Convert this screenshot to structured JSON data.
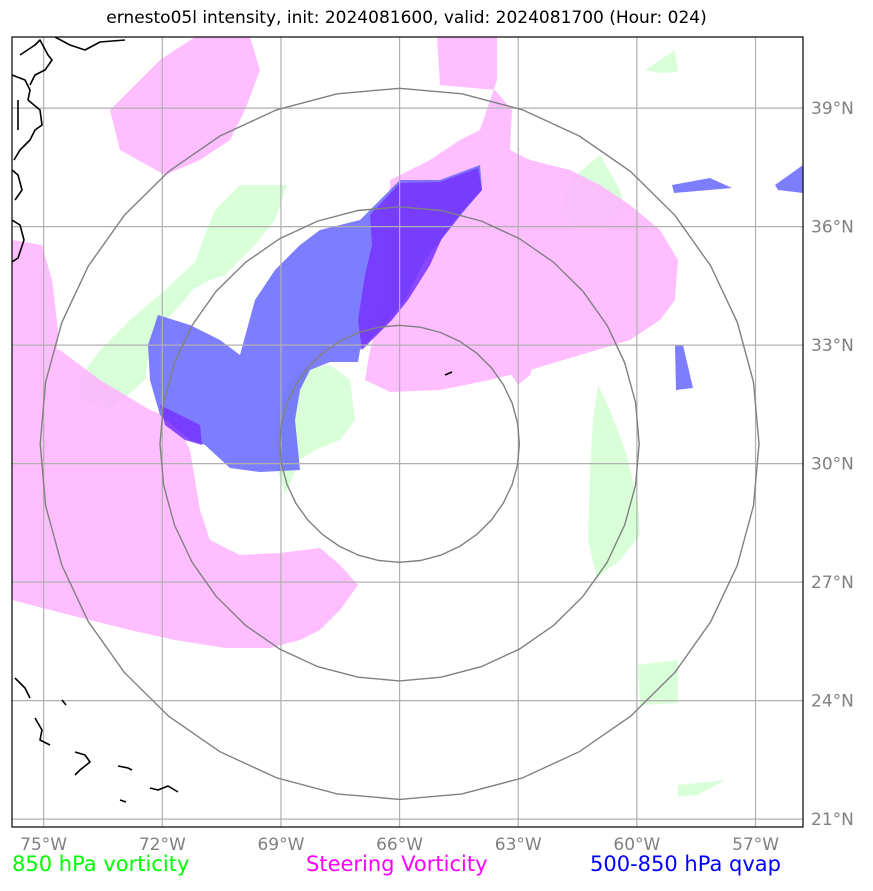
{
  "title": "ernesto05l intensity, init: 2024081600, valid: 2024081700 (Hour: 024)",
  "map": {
    "lon_range": [
      -75.8,
      -55.8
    ],
    "lat_range": [
      20.8,
      40.8
    ],
    "lon_ticks": [
      {
        "value": -75,
        "label": "75°W"
      },
      {
        "value": -72,
        "label": "72°W"
      },
      {
        "value": -69,
        "label": "69°W"
      },
      {
        "value": -66,
        "label": "66°W"
      },
      {
        "value": -63,
        "label": "63°W"
      },
      {
        "value": -60,
        "label": "60°W"
      },
      {
        "value": -57,
        "label": "57°W"
      }
    ],
    "lat_ticks": [
      {
        "value": 39,
        "label": "39°N"
      },
      {
        "value": 36,
        "label": "36°N"
      },
      {
        "value": 33,
        "label": "33°N"
      },
      {
        "value": 30,
        "label": "30°N"
      },
      {
        "value": 27,
        "label": "27°N"
      },
      {
        "value": 24,
        "label": "24°N"
      },
      {
        "value": 21,
        "label": "21°N"
      }
    ],
    "gridlines": true,
    "storm_center": {
      "lon": -66.0,
      "lat": 30.5
    },
    "range_rings_deg": [
      3,
      6,
      9
    ],
    "colors": {
      "vorticity_850": "#ccffcc",
      "steering_vorticity": "#ffb3ff",
      "qvap": "#6666ff",
      "qvap_overlap": "#7733ff",
      "rings": "#808080",
      "grid": "#b0b0b0",
      "coast": "#000000"
    }
  },
  "legend": {
    "green": {
      "label": "850 hPa vorticity",
      "color": "#00ff00"
    },
    "magenta": {
      "label": "Steering Vorticity",
      "color": "#ff00ff"
    },
    "blue": {
      "label": "500-850 hPa qvap",
      "color": "#0000ff"
    }
  }
}
